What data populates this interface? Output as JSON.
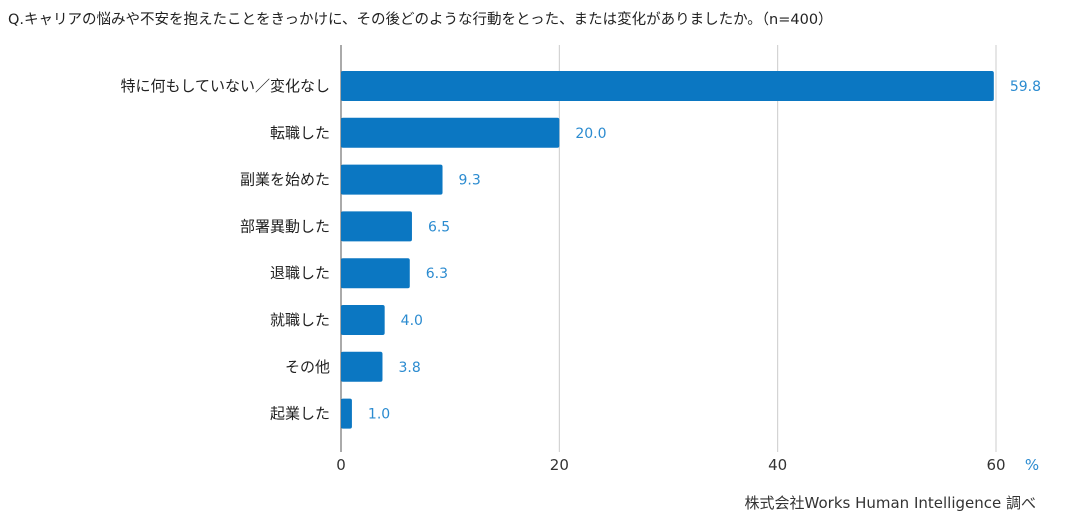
{
  "chart_data": {
    "type": "bar",
    "orientation": "horizontal",
    "title": "Q.キャリアの悩みや不安を抱えたことをきっかけに、その後どのような行動をとった、または変化がありましたか。（n=400）",
    "categories": [
      "特に何もしていない／変化なし",
      "転職した",
      "副業を始めた",
      "部署異動した",
      "退職した",
      "就職した",
      "その他",
      "起業した"
    ],
    "values": [
      59.8,
      20.0,
      9.3,
      6.5,
      6.3,
      4.0,
      3.8,
      1.0
    ],
    "value_labels": [
      "59.8",
      "20.0",
      "9.3",
      "6.5",
      "6.3",
      "4.0",
      "3.8",
      "1.0"
    ],
    "xlim": [
      0,
      60
    ],
    "xticks": [
      "0",
      "20",
      "40",
      "60"
    ],
    "xunit": "%",
    "grid": true,
    "bar_color": "#0b77c2",
    "label_color": "#2b8bd0",
    "source": "株式会社Works Human Intelligence 調べ"
  }
}
